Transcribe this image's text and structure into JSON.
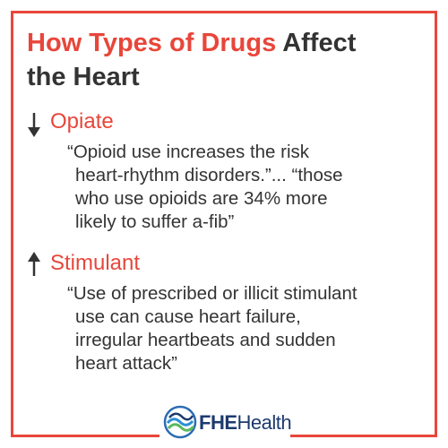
{
  "title": {
    "line1_highlight": "How Types of Drugs",
    "line1_rest": "Affect",
    "line2": "the Heart"
  },
  "sections": [
    {
      "heading": "Opiate",
      "quote_lines": [
        "“Opioid use increases the risk",
        "heart-rhythm disorders.”... “those",
        "who use opioids are 34% more",
        "likely to suffer a-fib”"
      ]
    },
    {
      "heading": "Stimulant",
      "quote_lines": [
        "“Use of prescribed or illicit stimulant",
        "use can cause heart failure,",
        "irregular heartbeats and sudden",
        "heart attack”"
      ]
    }
  ],
  "logo": {
    "bold": "FHE",
    "regular": "Health"
  }
}
